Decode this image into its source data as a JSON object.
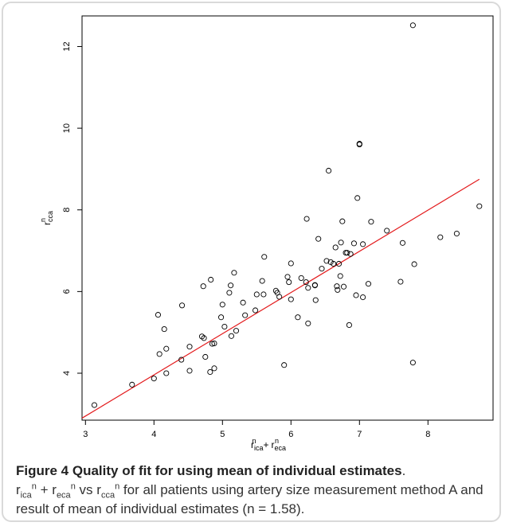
{
  "caption": {
    "figure_label": "Figure 4",
    "figure_title": "Quality of fit for using mean of individual estimates",
    "line1_suffix": " vs ",
    "body_rest": " for all patients using artery size measurement method A and result of mean of individual estimates (n = 1.58)."
  },
  "symbols": {
    "r": "r",
    "sup_n": "n",
    "sub_ica": "ica",
    "sub_eca": "eca",
    "sub_cca": "cca",
    "plus": "+",
    "period": "."
  },
  "colors": {
    "points": "#000000",
    "fit_line": "#e31a1c",
    "frame_border": "#d9d9d9"
  },
  "chart_data": {
    "type": "scatter",
    "xlabel": "r_ica^n + r_eca^n",
    "ylabel": "r_cca^n",
    "xlim": [
      2.95,
      8.95
    ],
    "ylim": [
      2.85,
      12.75
    ],
    "xticks": [
      3,
      4,
      5,
      6,
      7,
      8
    ],
    "yticks": [
      4,
      6,
      8,
      10,
      12
    ],
    "grid": false,
    "fit_line": {
      "x": [
        2.95,
        8.75
      ],
      "y": [
        2.9,
        8.75
      ]
    },
    "points": [
      [
        3.13,
        3.22
      ],
      [
        3.68,
        3.72
      ],
      [
        4.0,
        3.87
      ],
      [
        4.06,
        5.43
      ],
      [
        4.08,
        4.47
      ],
      [
        4.15,
        5.08
      ],
      [
        4.18,
        4.0
      ],
      [
        4.18,
        4.6
      ],
      [
        4.4,
        4.33
      ],
      [
        4.41,
        5.66
      ],
      [
        4.52,
        4.65
      ],
      [
        4.52,
        4.06
      ],
      [
        4.7,
        4.9
      ],
      [
        4.72,
        6.13
      ],
      [
        4.73,
        4.86
      ],
      [
        4.75,
        4.4
      ],
      [
        4.82,
        4.03
      ],
      [
        4.83,
        6.29
      ],
      [
        4.85,
        4.72
      ],
      [
        4.88,
        4.73
      ],
      [
        4.88,
        4.12
      ],
      [
        4.98,
        5.37
      ],
      [
        5.0,
        5.68
      ],
      [
        5.03,
        5.14
      ],
      [
        5.1,
        5.97
      ],
      [
        5.12,
        6.15
      ],
      [
        5.13,
        4.91
      ],
      [
        5.17,
        6.46
      ],
      [
        5.2,
        5.04
      ],
      [
        5.3,
        5.73
      ],
      [
        5.33,
        5.42
      ],
      [
        5.48,
        5.54
      ],
      [
        5.5,
        5.93
      ],
      [
        5.58,
        6.26
      ],
      [
        5.6,
        5.93
      ],
      [
        5.61,
        6.85
      ],
      [
        5.78,
        6.02
      ],
      [
        5.8,
        5.97
      ],
      [
        5.83,
        5.87
      ],
      [
        5.9,
        4.2
      ],
      [
        5.95,
        6.36
      ],
      [
        5.97,
        6.23
      ],
      [
        6.0,
        5.81
      ],
      [
        6.0,
        6.69
      ],
      [
        6.1,
        5.37
      ],
      [
        6.15,
        6.33
      ],
      [
        6.22,
        6.23
      ],
      [
        6.23,
        7.78
      ],
      [
        6.25,
        5.22
      ],
      [
        6.25,
        6.09
      ],
      [
        6.35,
        6.16
      ],
      [
        6.35,
        6.15
      ],
      [
        6.36,
        5.79
      ],
      [
        6.4,
        7.29
      ],
      [
        6.45,
        6.56
      ],
      [
        6.52,
        6.75
      ],
      [
        6.55,
        8.96
      ],
      [
        6.58,
        6.72
      ],
      [
        6.62,
        6.68
      ],
      [
        6.65,
        7.08
      ],
      [
        6.67,
        6.13
      ],
      [
        6.68,
        6.04
      ],
      [
        6.7,
        6.68
      ],
      [
        6.72,
        6.38
      ],
      [
        6.73,
        7.2
      ],
      [
        6.75,
        7.72
      ],
      [
        6.77,
        6.12
      ],
      [
        6.8,
        6.95
      ],
      [
        6.82,
        6.95
      ],
      [
        6.85,
        5.18
      ],
      [
        6.87,
        6.92
      ],
      [
        6.92,
        7.18
      ],
      [
        6.95,
        5.91
      ],
      [
        6.97,
        8.29
      ],
      [
        7.0,
        9.62
      ],
      [
        7.0,
        9.6
      ],
      [
        7.05,
        5.86
      ],
      [
        7.05,
        7.16
      ],
      [
        7.13,
        6.19
      ],
      [
        7.17,
        7.71
      ],
      [
        7.4,
        7.49
      ],
      [
        7.6,
        6.24
      ],
      [
        7.63,
        7.19
      ],
      [
        7.78,
        4.26
      ],
      [
        7.78,
        12.52
      ],
      [
        7.8,
        6.67
      ],
      [
        8.18,
        7.33
      ],
      [
        8.42,
        7.42
      ],
      [
        8.75,
        8.09
      ]
    ]
  }
}
